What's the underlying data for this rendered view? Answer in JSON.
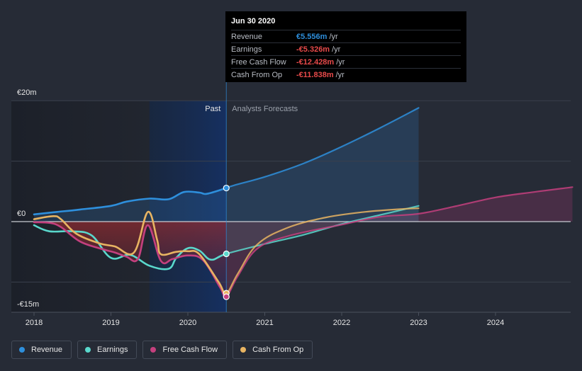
{
  "chart_data": {
    "type": "line",
    "title": "",
    "currency_prefix": "€",
    "y_labels": {
      "top": "€20m",
      "zero": "€0",
      "bottom": "-€15m"
    },
    "ylim": [
      -15,
      20
    ],
    "xlim": [
      2018,
      2025
    ],
    "x_ticks": [
      "2018",
      "2019",
      "2020",
      "2021",
      "2022",
      "2023",
      "2024"
    ],
    "past_label": "Past",
    "forecast_label": "Analysts Forecasts",
    "divider_x": 2020.5,
    "series": [
      {
        "name": "Revenue",
        "color": "#2e8fdc",
        "points": [
          [
            2018,
            1.2
          ],
          [
            2018.3,
            1.6
          ],
          [
            2018.6,
            2.0
          ],
          [
            2019.0,
            2.6
          ],
          [
            2019.2,
            3.3
          ],
          [
            2019.5,
            3.8
          ],
          [
            2019.75,
            3.7
          ],
          [
            2019.95,
            4.9
          ],
          [
            2020.15,
            4.8
          ],
          [
            2020.25,
            4.6
          ],
          [
            2020.5,
            5.556
          ],
          [
            2020.6,
            6.0
          ],
          [
            2021.0,
            7.4
          ],
          [
            2021.5,
            9.6
          ],
          [
            2022.0,
            12.4
          ],
          [
            2022.5,
            15.5
          ],
          [
            2023.0,
            18.8
          ]
        ]
      },
      {
        "name": "Earnings",
        "color": "#5ad8cc",
        "points": [
          [
            2018,
            -0.6
          ],
          [
            2018.2,
            -1.6
          ],
          [
            2018.5,
            -1.6
          ],
          [
            2018.75,
            -2.3
          ],
          [
            2019.0,
            -6.0
          ],
          [
            2019.25,
            -5.5
          ],
          [
            2019.5,
            -7.3
          ],
          [
            2019.75,
            -7.8
          ],
          [
            2019.85,
            -6.0
          ],
          [
            2020.0,
            -4.4
          ],
          [
            2020.15,
            -4.8
          ],
          [
            2020.3,
            -6.3
          ],
          [
            2020.5,
            -5.326
          ],
          [
            2021.0,
            -3.7
          ],
          [
            2021.5,
            -2.2
          ],
          [
            2022.0,
            -0.4
          ],
          [
            2022.5,
            1.1
          ],
          [
            2023.0,
            2.6
          ]
        ]
      },
      {
        "name": "Free Cash Flow",
        "color": "#c4407e",
        "points": [
          [
            2018,
            -0.1
          ],
          [
            2018.2,
            -0.2
          ],
          [
            2018.35,
            -0.9
          ],
          [
            2018.6,
            -3.3
          ],
          [
            2018.9,
            -4.6
          ],
          [
            2019.05,
            -5.1
          ],
          [
            2019.2,
            -5.8
          ],
          [
            2019.35,
            -6.2
          ],
          [
            2019.48,
            -0.6
          ],
          [
            2019.65,
            -6.5
          ],
          [
            2019.8,
            -6.2
          ],
          [
            2020.0,
            -5.6
          ],
          [
            2020.2,
            -6.4
          ],
          [
            2020.42,
            -10.9
          ],
          [
            2020.5,
            -12.428
          ],
          [
            2020.65,
            -9.0
          ],
          [
            2020.9,
            -4.5
          ],
          [
            2021.3,
            -2.4
          ],
          [
            2022.0,
            -0.5
          ],
          [
            2022.5,
            0.8
          ],
          [
            2023.0,
            1.3
          ],
          [
            2023.5,
            2.6
          ],
          [
            2024.0,
            4.0
          ],
          [
            2024.5,
            4.9
          ],
          [
            2025.0,
            5.7
          ]
        ]
      },
      {
        "name": "Cash From Op",
        "color": "#e8b462",
        "points": [
          [
            2018,
            0.4
          ],
          [
            2018.25,
            0.9
          ],
          [
            2018.35,
            0.4
          ],
          [
            2018.55,
            -2.0
          ],
          [
            2018.85,
            -3.6
          ],
          [
            2019.05,
            -4.1
          ],
          [
            2019.3,
            -5.1
          ],
          [
            2019.48,
            1.6
          ],
          [
            2019.6,
            -3.0
          ],
          [
            2019.65,
            -5.4
          ],
          [
            2019.85,
            -5.0
          ],
          [
            2020.0,
            -4.9
          ],
          [
            2020.15,
            -5.4
          ],
          [
            2020.4,
            -10.0
          ],
          [
            2020.5,
            -11.838
          ],
          [
            2020.65,
            -8.6
          ],
          [
            2020.9,
            -3.8
          ],
          [
            2021.3,
            -1.0
          ],
          [
            2021.8,
            0.7
          ],
          [
            2022.3,
            1.6
          ],
          [
            2022.8,
            2.1
          ],
          [
            2023.0,
            2.2
          ]
        ]
      }
    ]
  },
  "tooltip": {
    "date": "Jun 30 2020",
    "rows": [
      {
        "label": "Revenue",
        "value": "€5.556m",
        "unit": "/yr",
        "color": "#2e8fdc"
      },
      {
        "label": "Earnings",
        "value": "-€5.326m",
        "unit": "/yr",
        "color": "#e84a4a"
      },
      {
        "label": "Free Cash Flow",
        "value": "-€12.428m",
        "unit": "/yr",
        "color": "#e84a4a"
      },
      {
        "label": "Cash From Op",
        "value": "-€11.838m",
        "unit": "/yr",
        "color": "#e84a4a"
      }
    ]
  },
  "legend": [
    {
      "label": "Revenue",
      "color": "#2e8fdc"
    },
    {
      "label": "Earnings",
      "color": "#5ad8cc"
    },
    {
      "label": "Free Cash Flow",
      "color": "#c4407e"
    },
    {
      "label": "Cash From Op",
      "color": "#e8b462"
    }
  ]
}
